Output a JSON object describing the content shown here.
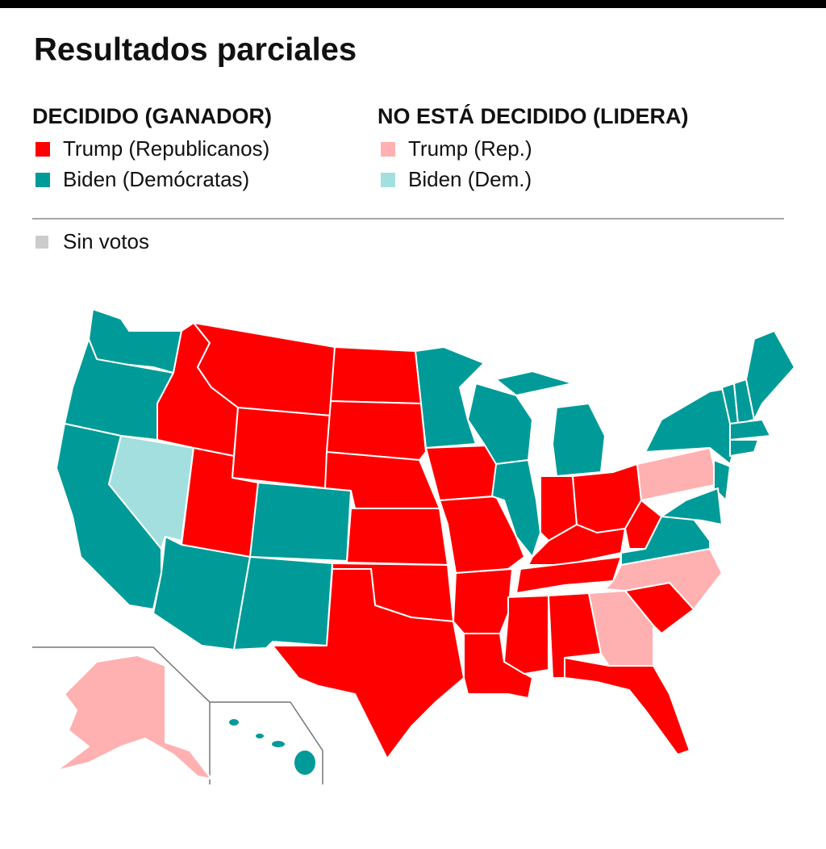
{
  "title": "Resultados parciales",
  "legend": {
    "decided": {
      "heading": "DECIDIDO (GANADOR)",
      "items": [
        {
          "label": "Trump (Republicanos)",
          "color": "#ff0000"
        },
        {
          "label": "Biden (Demócratas)",
          "color": "#009b98"
        }
      ]
    },
    "undecided": {
      "heading": "NO ESTÁ DECIDIDO (LIDERA)",
      "items": [
        {
          "label": "Trump (Rep.)",
          "color": "#ffb0b0"
        },
        {
          "label": "Biden (Dem.)",
          "color": "#a3dfdf"
        }
      ]
    },
    "no_votes": {
      "label": "Sin votos",
      "color": "#cccccc"
    }
  }
}
